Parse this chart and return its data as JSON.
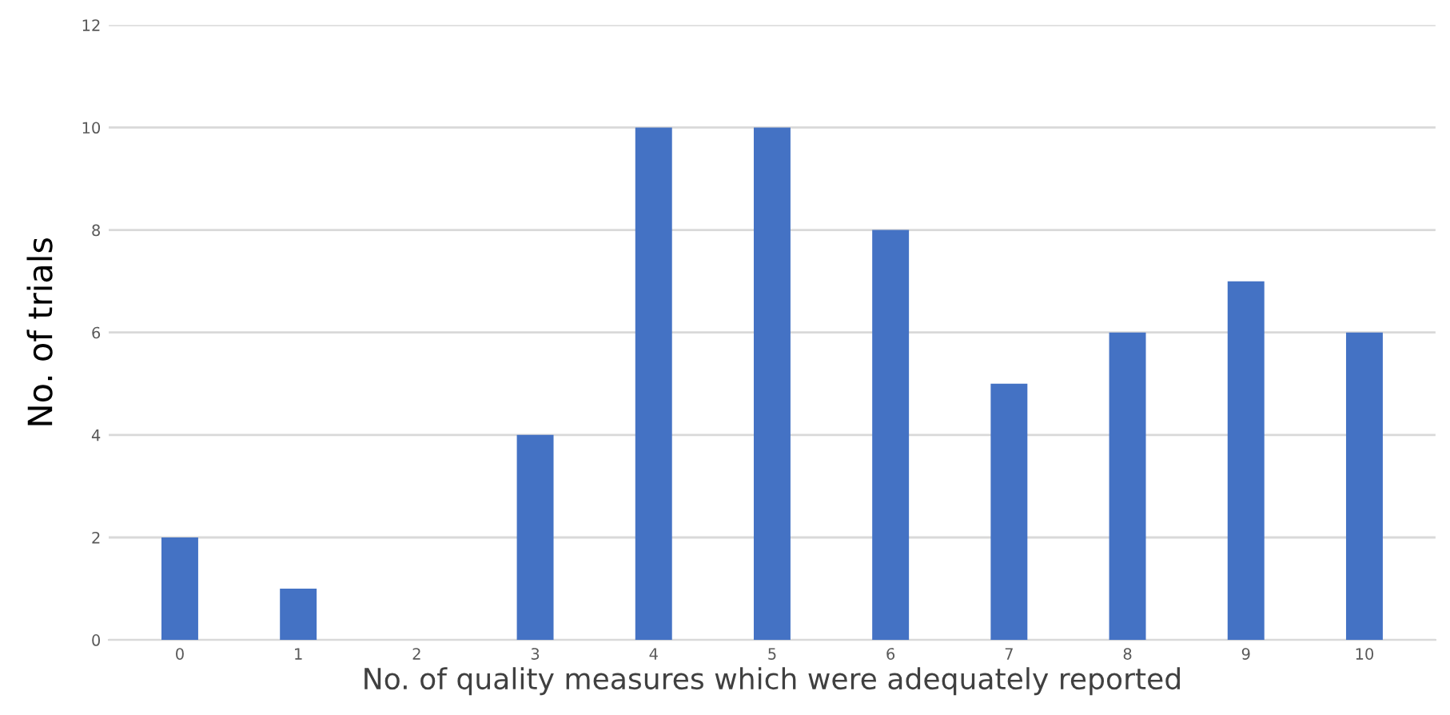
{
  "chart_data": {
    "type": "bar",
    "xlabel": "No. of quality measures which were adequately reported",
    "ylabel": "No. of trials",
    "categories": [
      "0",
      "1",
      "2",
      "3",
      "4",
      "5",
      "6",
      "7",
      "8",
      "9",
      "10"
    ],
    "values": [
      2,
      1,
      0,
      4,
      10,
      10,
      8,
      5,
      6,
      7,
      6
    ],
    "color": "#4472c4",
    "ylim": [
      0,
      12
    ],
    "yticks": [
      0,
      2,
      4,
      6,
      8,
      10,
      12
    ],
    "grid": "y"
  }
}
